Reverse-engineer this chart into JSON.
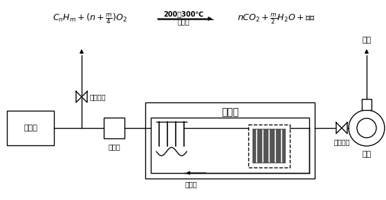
{
  "bg_color": "#ffffff",
  "line_color": "#000000",
  "catalyst_room_label": "催化室",
  "waste_source_label": "废气源",
  "flame_arrester_label": "阻火器",
  "heat_exchanger_label": "换热器",
  "vent_valve1_label": "排空阀门",
  "vent_valve2_label": "排空阀门",
  "fan_label": "风机",
  "exhaust_label": "排放",
  "fig_w": 5.58,
  "fig_h": 2.89,
  "dpi": 100
}
